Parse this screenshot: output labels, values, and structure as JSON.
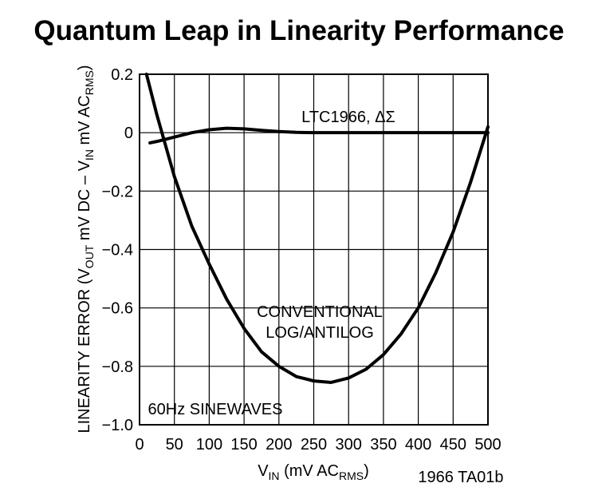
{
  "chart_data": {
    "type": "line",
    "title": "Quantum Leap in Linearity Performance",
    "xlabel": [
      "V",
      "IN",
      " (mV AC",
      "RMS",
      ")"
    ],
    "ylabel": [
      "LINEARITY ERROR (V",
      "OUT",
      " mV DC – V",
      "IN",
      " mV AC",
      "RMS",
      ")"
    ],
    "annotations": [
      "LTC1966, ΔΣ",
      "CONVENTIONAL",
      "LOG/ANTILOG",
      "60Hz SINEWAVES",
      "1966 TA01b"
    ],
    "xlim": [
      0,
      500
    ],
    "xticks": [
      0,
      50,
      100,
      150,
      200,
      250,
      300,
      350,
      400,
      450,
      500
    ],
    "ylim": [
      -1.0,
      0.2
    ],
    "yticks": [
      {
        "value": -1.0,
        "label": "−1.0"
      },
      {
        "value": -0.8,
        "label": "−0.8"
      },
      {
        "value": -0.6,
        "label": "−0.6"
      },
      {
        "value": -0.4,
        "label": "−0.4"
      },
      {
        "value": -0.2,
        "label": "−0.2"
      },
      0,
      0.2
    ],
    "grid": true,
    "series": [
      {
        "color": "#000000",
        "x": [
          15,
          25,
          50,
          75,
          100,
          125,
          150,
          175,
          200,
          225,
          250,
          300,
          350,
          400,
          450,
          500
        ],
        "values": [
          -0.035,
          -0.03,
          -0.015,
          0,
          0.01,
          0.015,
          0.013,
          0.008,
          0.004,
          0.001,
          0,
          0,
          0,
          0,
          0,
          0
        ]
      },
      {
        "color": "#000000",
        "x": [
          10,
          25,
          50,
          75,
          100,
          125,
          150,
          175,
          200,
          225,
          250,
          275,
          300,
          325,
          350,
          375,
          400,
          425,
          450,
          475,
          500
        ],
        "values": [
          0.2,
          0.06,
          -0.15,
          -0.32,
          -0.45,
          -0.57,
          -0.67,
          -0.75,
          -0.8,
          -0.835,
          -0.85,
          -0.855,
          -0.84,
          -0.81,
          -0.76,
          -0.69,
          -0.6,
          -0.48,
          -0.34,
          -0.17,
          0.02
        ]
      }
    ]
  }
}
